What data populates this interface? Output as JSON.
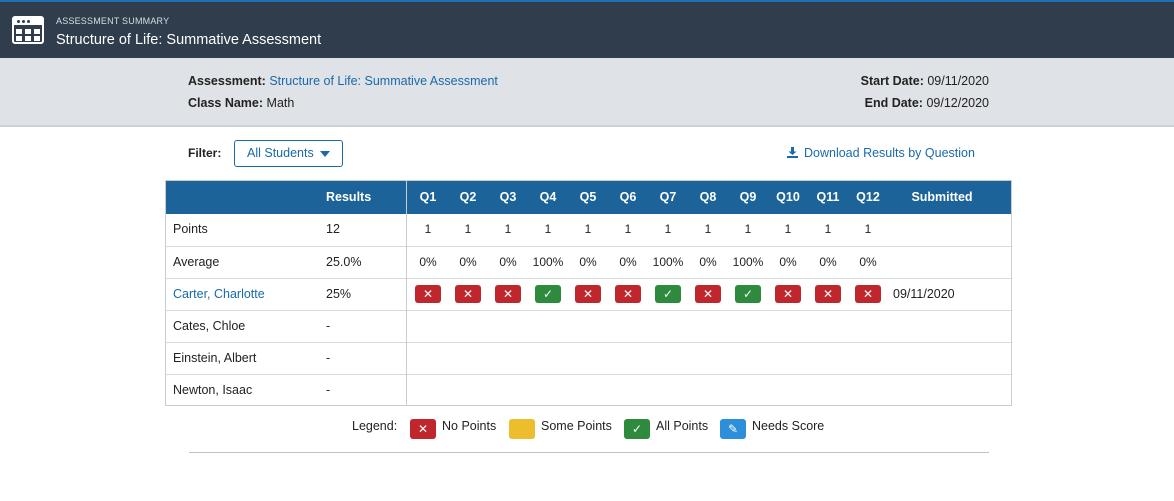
{
  "header": {
    "subtitle": "ASSESSMENT SUMMARY",
    "title": "Structure of Life: Summative Assessment"
  },
  "info": {
    "assessment_label": "Assessment:",
    "assessment_value": "Structure of Life: Summative Assessment",
    "class_label": "Class Name:",
    "class_value": "Math",
    "start_label": "Start Date:",
    "start_value": "09/11/2020",
    "end_label": "End Date:",
    "end_value": "09/12/2020"
  },
  "filter": {
    "label": "Filter:",
    "selected": "All Students"
  },
  "download_label": "Download Results by Question",
  "table": {
    "results_header": "Results",
    "questions": [
      "Q1",
      "Q2",
      "Q3",
      "Q4",
      "Q5",
      "Q6",
      "Q7",
      "Q8",
      "Q9",
      "Q10",
      "Q11",
      "Q12"
    ],
    "submitted_header": "Submitted",
    "points": {
      "label": "Points",
      "result": "12",
      "values": [
        "1",
        "1",
        "1",
        "1",
        "1",
        "1",
        "1",
        "1",
        "1",
        "1",
        "1",
        "1"
      ]
    },
    "average": {
      "label": "Average",
      "result": "25.0%",
      "values": [
        "0%",
        "0%",
        "0%",
        "100%",
        "0%",
        "0%",
        "100%",
        "0%",
        "100%",
        "0%",
        "0%",
        "0%"
      ]
    },
    "students": [
      {
        "name": "Carter, Charlotte",
        "result": "25%",
        "scores": [
          "none",
          "none",
          "none",
          "all",
          "none",
          "none",
          "all",
          "none",
          "all",
          "none",
          "none",
          "none"
        ],
        "submitted": "09/11/2020"
      },
      {
        "name": "Cates, Chloe",
        "result": "-"
      },
      {
        "name": "Einstein, Albert",
        "result": "-"
      },
      {
        "name": "Newton, Isaac",
        "result": "-"
      }
    ]
  },
  "legend": {
    "label": "Legend:",
    "no_points": "No Points",
    "some_points": "Some Points",
    "all_points": "All Points",
    "needs_score": "Needs Score"
  },
  "colors": {
    "header_bg": "#2f3d4c",
    "table_header": "#1c6399",
    "no_points": "#c0272d",
    "some_points": "#ecbd2c",
    "all_points": "#2e8b3d",
    "needs_score": "#2d8fd9",
    "link": "#1a6aa8"
  }
}
